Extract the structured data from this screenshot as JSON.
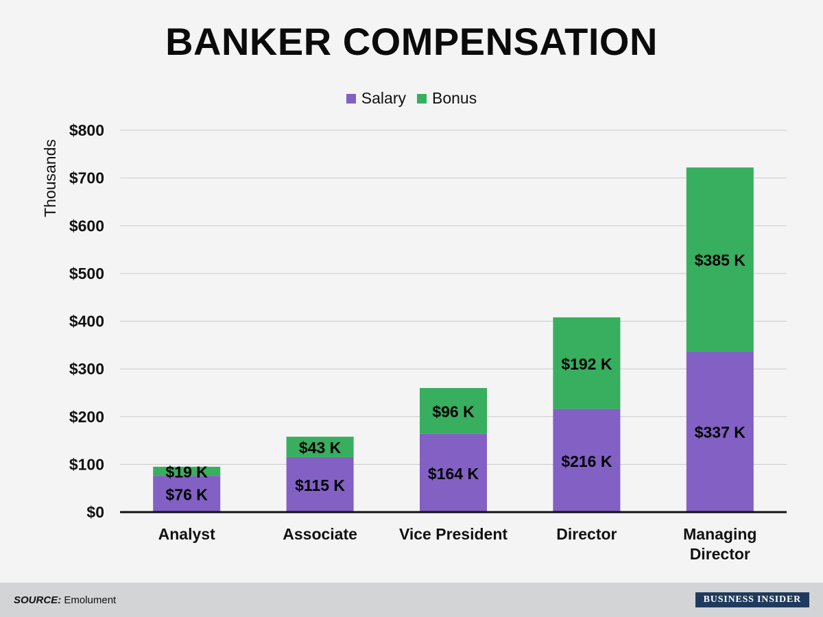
{
  "colors": {
    "salary": "#8260c4",
    "bonus": "#38ae5f",
    "background": "#f4f4f4",
    "footer": "#d2d4d5",
    "brand": "#1f3a5c"
  },
  "footer": {
    "source_label": "SOURCE:",
    "source_value": "Emolument",
    "brand": "BUSINESS INSIDER"
  },
  "chart_data": {
    "type": "bar",
    "stacked": true,
    "title": "BANKER COMPENSATION",
    "ylabel": "Thousands",
    "xlabel": "",
    "ylim": [
      0,
      800
    ],
    "yticks": [
      "$0",
      "$100",
      "$200",
      "$300",
      "$400",
      "$500",
      "$600",
      "$700",
      "$800"
    ],
    "categories": [
      [
        "Analyst"
      ],
      [
        "Associate"
      ],
      [
        "Vice President"
      ],
      [
        "Director"
      ],
      [
        "Managing",
        "Director"
      ]
    ],
    "legend_position": "top-center",
    "grid": true,
    "series": [
      {
        "name": "Salary",
        "values": [
          76,
          115,
          164,
          216,
          337
        ],
        "labels": [
          "$76 K",
          "$115 K",
          "$164 K",
          "$216 K",
          "$337 K"
        ]
      },
      {
        "name": "Bonus",
        "values": [
          19,
          43,
          96,
          192,
          385
        ],
        "labels": [
          "$19 K",
          "$43 K",
          "$96 K",
          "$192 K",
          "$385 K"
        ]
      }
    ]
  }
}
